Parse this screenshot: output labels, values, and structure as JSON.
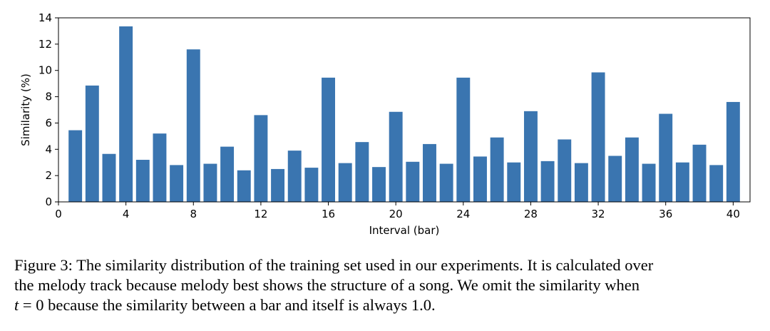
{
  "chart_data": {
    "type": "bar",
    "xlabel": "Interval (bar)",
    "ylabel": "Similarity (%)",
    "xlim": [
      0,
      41
    ],
    "ylim": [
      0,
      14
    ],
    "xticks": [
      0,
      4,
      8,
      12,
      16,
      20,
      24,
      28,
      32,
      36,
      40
    ],
    "yticks": [
      0,
      2,
      4,
      6,
      8,
      10,
      12,
      14
    ],
    "bar_color": "#3a75b0",
    "x": [
      1,
      2,
      3,
      4,
      5,
      6,
      7,
      8,
      9,
      10,
      11,
      12,
      13,
      14,
      15,
      16,
      17,
      18,
      19,
      20,
      21,
      22,
      23,
      24,
      25,
      26,
      27,
      28,
      29,
      30,
      31,
      32,
      33,
      34,
      35,
      36,
      37,
      38,
      39,
      40
    ],
    "values": [
      5.45,
      8.85,
      3.65,
      13.35,
      3.2,
      5.2,
      2.8,
      11.6,
      2.9,
      4.2,
      2.4,
      6.6,
      2.5,
      3.9,
      2.6,
      9.45,
      2.95,
      4.55,
      2.65,
      6.85,
      3.05,
      4.4,
      2.9,
      9.45,
      3.45,
      4.9,
      3.0,
      6.9,
      3.1,
      4.75,
      2.95,
      9.85,
      3.5,
      4.9,
      2.9,
      6.7,
      3.0,
      4.35,
      2.8,
      7.6
    ]
  },
  "caption": {
    "line1": "Figure 3: The similarity distribution of the training set used in our experiments. It is calculated over",
    "line2": "the melody track because melody best shows the structure of a song. We omit the similarity when",
    "var": "t",
    "line3_mid": " = 0 because the similarity between a bar and itself is always 1.0."
  }
}
